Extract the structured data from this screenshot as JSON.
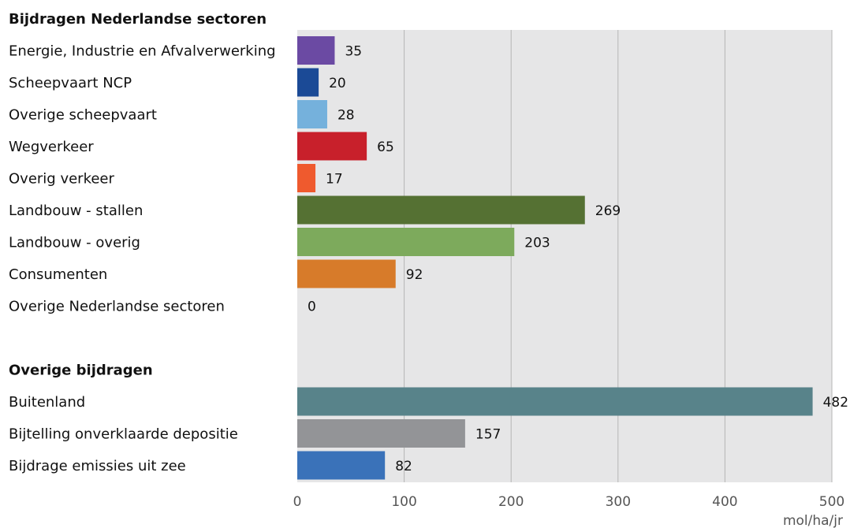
{
  "chart_data": {
    "type": "bar",
    "orientation": "horizontal",
    "groups": [
      {
        "heading": "Bijdragen Nederlandse sectoren",
        "items": [
          {
            "label": "Energie, Industrie en Afvalverwerking",
            "value": 35,
            "color": "#6b4aa3"
          },
          {
            "label": "Scheepvaart NCP",
            "value": 20,
            "color": "#1b4a96"
          },
          {
            "label": "Overige scheepvaart",
            "value": 28,
            "color": "#75b1dc"
          },
          {
            "label": "Wegverkeer",
            "value": 65,
            "color": "#c8202b"
          },
          {
            "label": "Overig verkeer",
            "value": 17,
            "color": "#ef5a2e"
          },
          {
            "label": "Landbouw - stallen",
            "value": 269,
            "color": "#557133"
          },
          {
            "label": "Landbouw - overig",
            "value": 203,
            "color": "#7daa5c"
          },
          {
            "label": "Consumenten",
            "value": 92,
            "color": "#d77b2a"
          },
          {
            "label": "Overige Nederlandse sectoren",
            "value": 0,
            "color": "#999999"
          }
        ]
      },
      {
        "heading": "Overige bijdragen",
        "items": [
          {
            "label": "Buitenland",
            "value": 482,
            "color": "#58838a"
          },
          {
            "label": "Bijtelling onverklaarde depositie",
            "value": 157,
            "color": "#939497"
          },
          {
            "label": "Bijdrage emissies uit zee",
            "value": 82,
            "color": "#3a72b9"
          }
        ]
      }
    ],
    "xlim": [
      0,
      500
    ],
    "xticks": [
      "0",
      "100",
      "200",
      "300",
      "400",
      "500"
    ],
    "xtick_values": [
      0,
      100,
      200,
      300,
      400,
      500
    ],
    "unit": "mol/ha/jr",
    "grid": true,
    "plot_background": "#e6e6e7",
    "grid_color": "#b5b5b5"
  }
}
